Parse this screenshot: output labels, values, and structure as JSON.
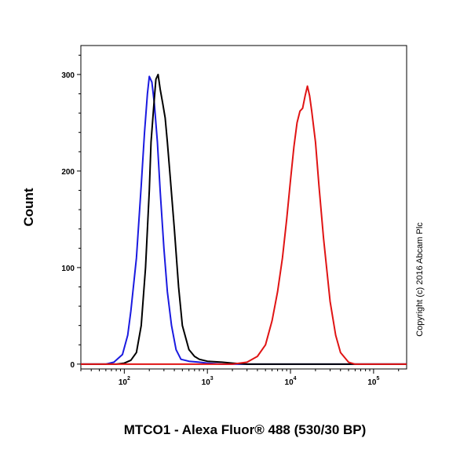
{
  "chart_data": {
    "type": "line",
    "xlabel": "MTCO1 - Alexa Fluor® 488 (530/30 BP)",
    "ylabel": "Count",
    "x_scale": "log",
    "xlim": [
      30,
      250000
    ],
    "ylim": [
      -5,
      330
    ],
    "x_ticks": [
      {
        "value": 100,
        "base": "10",
        "exp": "2"
      },
      {
        "value": 1000,
        "base": "10",
        "exp": "3"
      },
      {
        "value": 10000,
        "base": "10",
        "exp": "4"
      },
      {
        "value": 100000,
        "base": "10",
        "exp": "5"
      }
    ],
    "y_ticks": [
      {
        "value": 0,
        "label": "0"
      },
      {
        "value": 100,
        "label": "100"
      },
      {
        "value": 200,
        "label": "200"
      },
      {
        "value": 300,
        "label": "300"
      }
    ],
    "series": [
      {
        "color": "#1a1ae0",
        "x": [
          30,
          60,
          75,
          95,
          110,
          120,
          140,
          160,
          175,
          190,
          200,
          215,
          230,
          250,
          270,
          300,
          330,
          370,
          420,
          480,
          600,
          800,
          1000,
          1500,
          2000,
          3000,
          5000,
          10000,
          100000,
          250000
        ],
        "y": [
          0,
          0,
          2,
          10,
          30,
          55,
          110,
          185,
          240,
          280,
          298,
          292,
          270,
          230,
          180,
          120,
          75,
          40,
          15,
          5,
          3,
          2,
          1,
          0,
          0,
          0,
          0,
          0,
          0,
          0
        ]
      },
      {
        "color": "#000000",
        "x": [
          30,
          80,
          100,
          120,
          140,
          160,
          180,
          200,
          210,
          230,
          240,
          255,
          270,
          290,
          310,
          330,
          360,
          400,
          450,
          500,
          600,
          700,
          800,
          1000,
          1500,
          2000,
          3000,
          10000,
          100000,
          250000
        ],
        "y": [
          0,
          0,
          1,
          4,
          12,
          40,
          100,
          180,
          230,
          275,
          295,
          300,
          285,
          270,
          255,
          230,
          190,
          140,
          80,
          40,
          15,
          8,
          5,
          3,
          2,
          1,
          0,
          0,
          0,
          0
        ]
      },
      {
        "color": "#e01414",
        "x": [
          30,
          2000,
          3000,
          4000,
          5000,
          6000,
          7000,
          8000,
          9000,
          10000,
          11000,
          12000,
          13000,
          14000,
          15000,
          16000,
          17000,
          18000,
          20000,
          22000,
          25000,
          30000,
          35000,
          40000,
          50000,
          60000,
          100000,
          250000
        ],
        "y": [
          0,
          0,
          2,
          8,
          20,
          45,
          75,
          110,
          150,
          190,
          225,
          250,
          262,
          265,
          278,
          288,
          278,
          262,
          230,
          185,
          130,
          65,
          30,
          12,
          2,
          0,
          0,
          0
        ]
      }
    ]
  },
  "copyright": "Copyright (c) 2016 Abcam Plc"
}
